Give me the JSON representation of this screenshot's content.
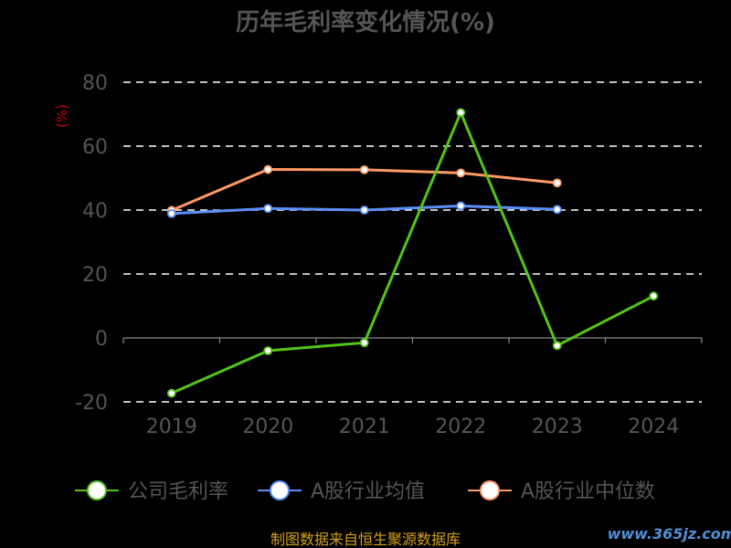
{
  "chart_data": {
    "type": "line",
    "title": "历年毛利率变化情况(%)",
    "ylabel": "(%)",
    "categories": [
      "2019",
      "2020",
      "2021",
      "2022",
      "2023",
      "2024"
    ],
    "ylim": [
      -20,
      80
    ],
    "yticks": [
      -20,
      0,
      20,
      40,
      60,
      80
    ],
    "grid": true,
    "legend_position": "bottom",
    "series": [
      {
        "name": "公司毛利率",
        "color": "#52c41a",
        "values": [
          -17.3,
          -4.0,
          -1.5,
          70.5,
          -2.4,
          13.1
        ]
      },
      {
        "name": "A股行业均值",
        "color": "#5b8ff9",
        "values": [
          38.9,
          40.5,
          40.0,
          41.3,
          40.2,
          null
        ]
      },
      {
        "name": "A股行业中位数",
        "color": "#ff9966",
        "values": [
          39.9,
          52.7,
          52.6,
          51.6,
          48.5,
          null
        ]
      }
    ]
  },
  "footer": {
    "source": "制图数据来自恒生聚源数据库",
    "watermark": "www.365jz.com"
  }
}
